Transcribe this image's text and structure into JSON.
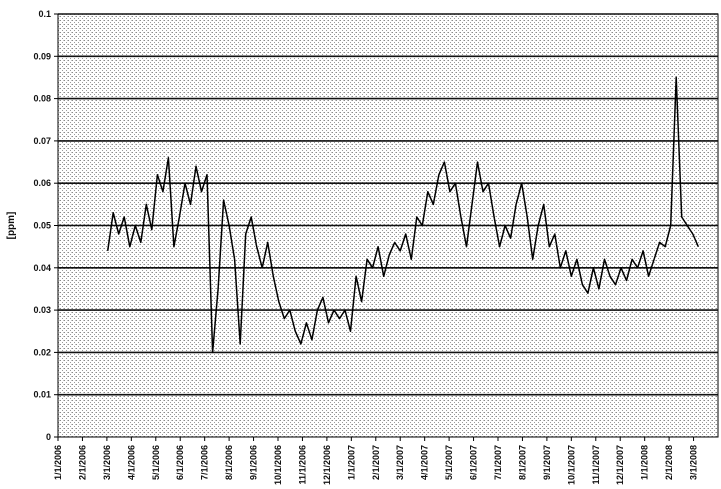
{
  "chart_data": {
    "type": "line",
    "title": "",
    "xlabel": "",
    "ylabel": "[ppm]",
    "ylim": [
      0,
      0.1
    ],
    "yticks": [
      "0",
      "0.01",
      "0.02",
      "0.03",
      "0.04",
      "0.05",
      "0.06",
      "0.07",
      "0.08",
      "0.09",
      "0.1"
    ],
    "xticks": [
      "1/1/2006",
      "2/1/2006",
      "3/1/2006",
      "4/1/2006",
      "5/1/2006",
      "6/1/2006",
      "7/1/2006",
      "8/1/2006",
      "9/1/2006",
      "10/1/2006",
      "11/1/2006",
      "12/1/2006",
      "1/1/2007",
      "2/1/2007",
      "3/1/2007",
      "4/1/2007",
      "5/1/2007",
      "6/1/2007",
      "7/1/2007",
      "8/1/2007",
      "9/1/2007",
      "10/1/2007",
      "11/1/2007",
      "12/1/2007",
      "1/1/2008",
      "2/1/2008",
      "3/1/2008"
    ],
    "grid": true,
    "series": [
      {
        "color": "#000000",
        "x": [
          "3/5/2006",
          "3/12/2006",
          "3/19/2006",
          "3/26/2006",
          "4/2/2006",
          "4/9/2006",
          "4/16/2006",
          "4/23/2006",
          "4/30/2006",
          "5/7/2006",
          "5/14/2006",
          "5/21/2006",
          "5/28/2006",
          "6/4/2006",
          "6/11/2006",
          "6/18/2006",
          "6/25/2006",
          "7/2/2006",
          "7/9/2006",
          "7/16/2006",
          "7/23/2006",
          "7/30/2006",
          "8/6/2006",
          "8/13/2006",
          "8/20/2006",
          "8/27/2006",
          "9/3/2006",
          "9/10/2006",
          "9/17/2006",
          "9/24/2006",
          "10/1/2006",
          "10/8/2006",
          "10/15/2006",
          "10/22/2006",
          "10/29/2006",
          "11/5/2006",
          "11/12/2006",
          "11/19/2006",
          "11/26/2006",
          "12/3/2006",
          "12/10/2006",
          "12/17/2006",
          "12/24/2006",
          "12/31/2006",
          "1/7/2007",
          "1/14/2007",
          "1/21/2007",
          "1/28/2007",
          "2/4/2007",
          "2/11/2007",
          "2/18/2007",
          "2/25/2007",
          "3/4/2007",
          "3/11/2007",
          "3/18/2007",
          "3/25/2007",
          "4/1/2007",
          "4/8/2007",
          "4/15/2007",
          "4/22/2007",
          "4/29/2007",
          "5/6/2007",
          "5/13/2007",
          "5/20/2007",
          "5/27/2007",
          "6/3/2007",
          "6/10/2007",
          "6/17/2007",
          "6/24/2007",
          "7/1/2007",
          "7/8/2007",
          "7/15/2007",
          "7/22/2007",
          "7/29/2007",
          "8/5/2007",
          "8/12/2007",
          "8/19/2007",
          "8/26/2007",
          "9/2/2007",
          "9/9/2007",
          "9/16/2007",
          "9/23/2007",
          "9/30/2007",
          "10/7/2007",
          "10/14/2007",
          "10/21/2007",
          "10/28/2007",
          "11/4/2007",
          "11/11/2007",
          "11/18/2007",
          "11/25/2007",
          "12/2/2007",
          "12/9/2007",
          "12/16/2007",
          "12/23/2007",
          "12/30/2007",
          "1/6/2008",
          "1/13/2008",
          "1/20/2008",
          "1/27/2008",
          "2/3/2008",
          "2/10/2008",
          "2/17/2008",
          "2/24/2008",
          "3/2/2008",
          "3/9/2008",
          "3/16/2008",
          "3/23/2008"
        ],
        "y": [
          0.044,
          0.053,
          0.048,
          0.052,
          0.045,
          0.05,
          0.046,
          0.055,
          0.049,
          0.062,
          0.058,
          0.066,
          0.045,
          0.052,
          0.06,
          0.055,
          0.064,
          0.058,
          0.062,
          0.02,
          0.035,
          0.056,
          0.05,
          0.042,
          0.022,
          0.048,
          0.052,
          0.045,
          0.04,
          0.046,
          0.038,
          0.032,
          0.028,
          0.03,
          0.025,
          0.022,
          0.027,
          0.023,
          0.03,
          0.033,
          0.027,
          0.03,
          0.028,
          0.03,
          0.025,
          0.038,
          0.032,
          0.042,
          0.04,
          0.045,
          0.038,
          0.043,
          0.046,
          0.044,
          0.048,
          0.042,
          0.052,
          0.05,
          0.058,
          0.055,
          0.062,
          0.065,
          0.058,
          0.06,
          0.052,
          0.045,
          0.055,
          0.065,
          0.058,
          0.06,
          0.052,
          0.045,
          0.05,
          0.047,
          0.055,
          0.06,
          0.052,
          0.042,
          0.05,
          0.055,
          0.045,
          0.048,
          0.04,
          0.044,
          0.038,
          0.042,
          0.036,
          0.034,
          0.04,
          0.035,
          0.042,
          0.038,
          0.036,
          0.04,
          0.037,
          0.042,
          0.04,
          0.044,
          0.038,
          0.042,
          0.046,
          0.045,
          0.05,
          0.085,
          0.052,
          0.05,
          0.048,
          0.045
        ]
      }
    ]
  }
}
